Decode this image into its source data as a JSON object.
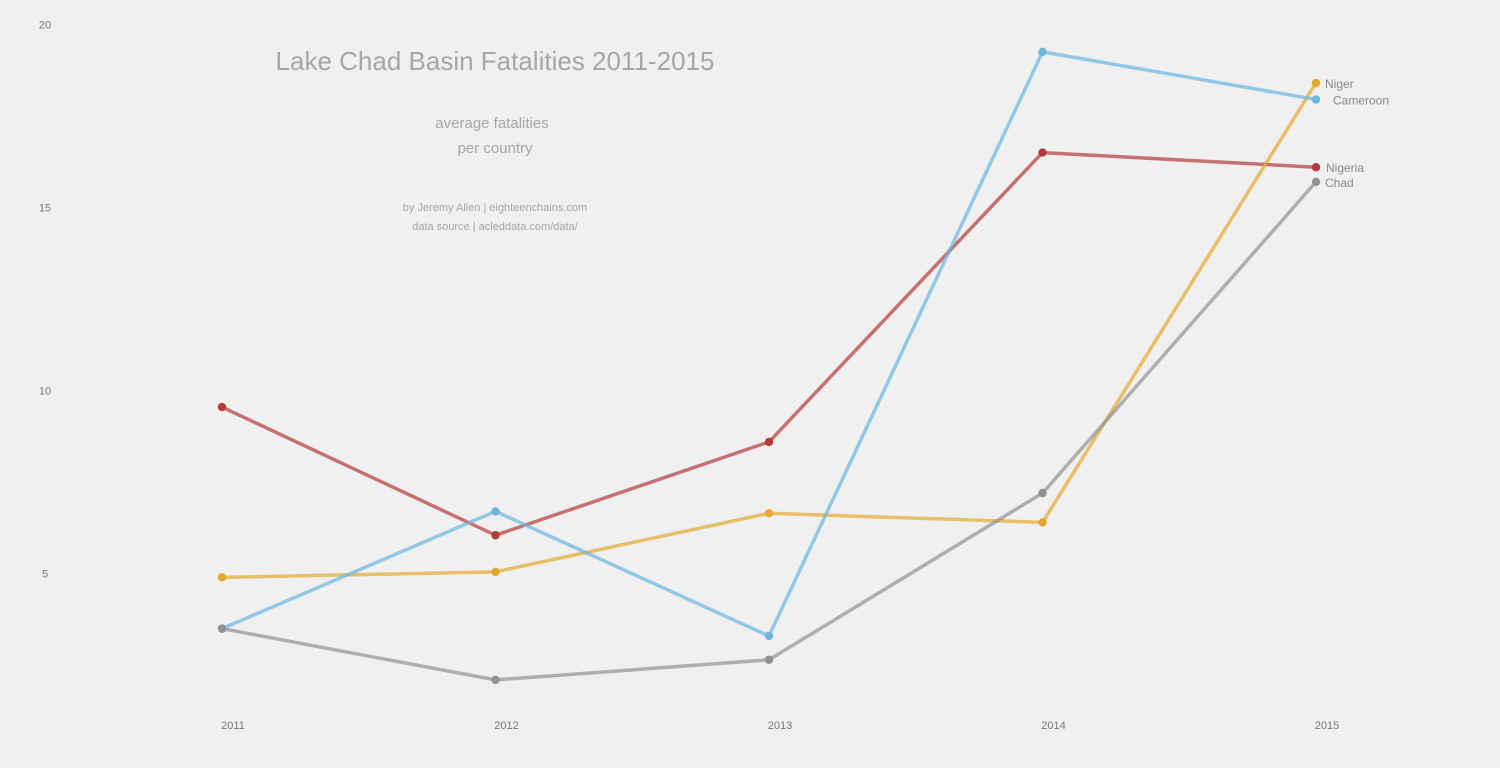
{
  "chart_data": {
    "type": "line",
    "title": "Lake Chad Basin Fatalities 2011-2015",
    "subtitle_lines": [
      "average fatalities",
      "per country"
    ],
    "credit_lines": [
      "by Jeremy Allen  |  eighteenchains.com",
      "data source  |  acleddata.com/data/"
    ],
    "xlabel": "",
    "ylabel": "",
    "x": [
      "2011",
      "2012",
      "2013",
      "2014",
      "2015"
    ],
    "ylim": [
      0,
      20
    ],
    "yticks": [
      5,
      10,
      15,
      20
    ],
    "grid": false,
    "legend": "none (labels at line ends)",
    "series": [
      {
        "name": "Nigeria",
        "color": "#b33a3a",
        "values": [
          9.55,
          6.05,
          8.6,
          16.5,
          16.1
        ]
      },
      {
        "name": "Niger",
        "color": "#e3a92e",
        "values": [
          4.9,
          5.05,
          6.65,
          6.4,
          18.4
        ]
      },
      {
        "name": "Cameroon",
        "color": "#6bb6e0",
        "values": [
          3.5,
          6.7,
          3.3,
          19.25,
          17.95
        ]
      },
      {
        "name": "Chad",
        "color": "#919191",
        "values": [
          3.5,
          2.1,
          2.65,
          7.2,
          15.7
        ]
      }
    ]
  }
}
